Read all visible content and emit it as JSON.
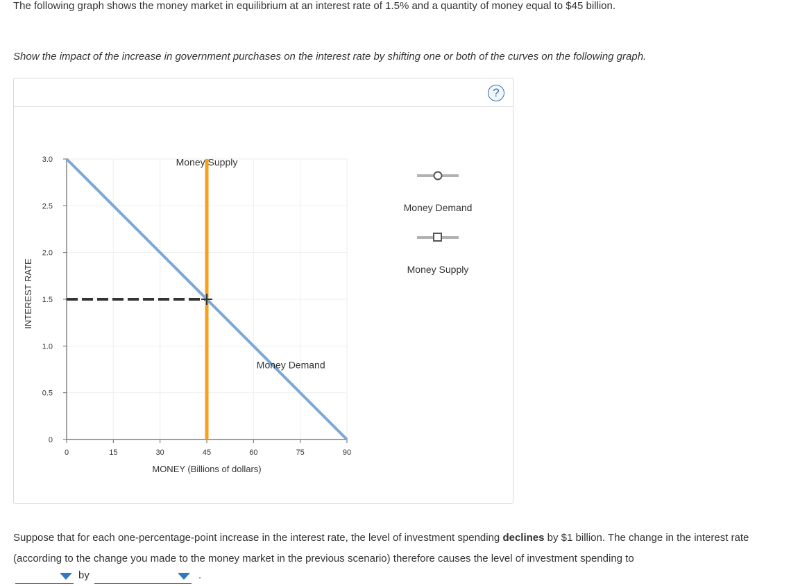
{
  "intro_text": "The following graph shows the money market in equilibrium at an interest rate of 1.5% and a quantity of money equal to $45 billion.",
  "instruction_text": "Show the impact of the increase in government purchases on the interest rate by shifting one or both of the curves on the following graph.",
  "help_label": "?",
  "graph": {
    "ylabel": "INTEREST RATE",
    "xlabel": "MONEY (Billions of dollars)",
    "x_ticks": [
      "0",
      "15",
      "30",
      "45",
      "60",
      "75",
      "90"
    ],
    "y_ticks": [
      "0",
      "0.5",
      "1.0",
      "1.5",
      "2.0",
      "2.5",
      "3.0"
    ],
    "xlim": [
      0,
      90
    ],
    "ylim": [
      0,
      3.0
    ],
    "money_supply_label": "Money Supply",
    "money_demand_label": "Money Demand",
    "money_supply_color": "#f7a01d",
    "money_demand_color": "#7ca8d3",
    "equilibrium": {
      "x": 45,
      "y": 1.5
    }
  },
  "chart_data": {
    "type": "line",
    "xlabel": "MONEY (Billions of dollars)",
    "ylabel": "INTEREST RATE",
    "xlim": [
      0,
      90
    ],
    "ylim": [
      0,
      3.0
    ],
    "series": [
      {
        "name": "Money Demand",
        "x": [
          0,
          90
        ],
        "y": [
          3.0,
          0
        ]
      },
      {
        "name": "Money Supply",
        "x": [
          45,
          45
        ],
        "y": [
          0,
          3.0
        ]
      }
    ]
  },
  "legend": {
    "items": [
      {
        "label": "Money Demand",
        "marker": "circle"
      },
      {
        "label": "Money Supply",
        "marker": "square"
      }
    ]
  },
  "question": {
    "text_before_bold": "Suppose that for each one-percentage-point increase in the interest rate, the level of investment spending ",
    "bold_word": "declines",
    "text_after_bold": " by $1 billion. The change in the interest rate (according to the change you made to the money market in the previous scenario) therefore causes the level of investment spending to",
    "by_label": "by",
    "period": "."
  }
}
